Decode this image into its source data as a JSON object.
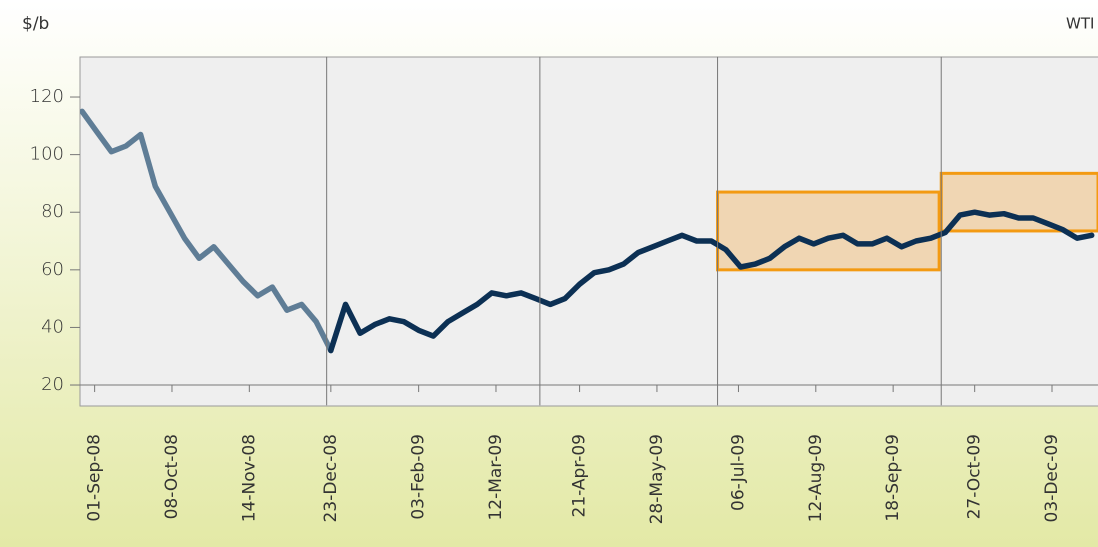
{
  "chart_data": {
    "type": "line",
    "y_unit": "$/b",
    "series_label": "WTI",
    "x": [
      "26-Aug-08",
      "02-Sep-08",
      "09-Sep-08",
      "16-Sep-08",
      "23-Sep-08",
      "30-Sep-08",
      "07-Oct-08",
      "14-Oct-08",
      "21-Oct-08",
      "28-Oct-08",
      "04-Nov-08",
      "11-Nov-08",
      "18-Nov-08",
      "25-Nov-08",
      "02-Dec-08",
      "09-Dec-08",
      "16-Dec-08",
      "23-Dec-08",
      "30-Dec-08",
      "06-Jan-09",
      "13-Jan-09",
      "20-Jan-09",
      "27-Jan-09",
      "03-Feb-09",
      "10-Feb-09",
      "17-Feb-09",
      "24-Feb-09",
      "03-Mar-09",
      "10-Mar-09",
      "17-Mar-09",
      "24-Mar-09",
      "31-Mar-09",
      "07-Apr-09",
      "14-Apr-09",
      "21-Apr-09",
      "28-Apr-09",
      "05-May-09",
      "12-May-09",
      "19-May-09",
      "26-May-09",
      "02-Jun-09",
      "09-Jun-09",
      "16-Jun-09",
      "23-Jun-09",
      "30-Jun-09",
      "07-Jul-09",
      "14-Jul-09",
      "21-Jul-09",
      "28-Jul-09",
      "04-Aug-09",
      "11-Aug-09",
      "18-Aug-09",
      "25-Aug-09",
      "01-Sep-09",
      "08-Sep-09",
      "15-Sep-09",
      "22-Sep-09",
      "29-Sep-09",
      "06-Oct-09",
      "13-Oct-09",
      "20-Oct-09",
      "27-Oct-09",
      "03-Nov-09",
      "10-Nov-09",
      "17-Nov-09",
      "24-Nov-09",
      "01-Dec-09",
      "08-Dec-09",
      "15-Dec-09",
      "22-Dec-09"
    ],
    "series": [
      {
        "color": "#5f7d96",
        "values": [
          115,
          108,
          101,
          103,
          107,
          89,
          80,
          71,
          64,
          68,
          62,
          56,
          51,
          54,
          46,
          48,
          42,
          32,
          null,
          null,
          null,
          null,
          null,
          null,
          null,
          null,
          null,
          null,
          null,
          null,
          null,
          null,
          null,
          null,
          null,
          null,
          null,
          null,
          null,
          null,
          null,
          null,
          null,
          null,
          null,
          null,
          null,
          null,
          null,
          null,
          null,
          null,
          null,
          null,
          null,
          null,
          null,
          null,
          null,
          null,
          null,
          null,
          null,
          null,
          null,
          null,
          null,
          null,
          null,
          null
        ]
      },
      {
        "color": "#0c3054",
        "values": [
          null,
          null,
          null,
          null,
          null,
          null,
          null,
          null,
          null,
          null,
          null,
          null,
          null,
          null,
          null,
          null,
          null,
          32,
          48,
          38,
          41,
          43,
          42,
          39,
          37,
          42,
          45,
          48,
          52,
          51,
          52,
          50,
          48,
          50,
          55,
          59,
          60,
          62,
          66,
          68,
          70,
          72,
          70,
          70,
          67,
          61,
          62,
          64,
          68,
          71,
          69,
          71,
          72,
          69,
          69,
          71,
          68,
          70,
          71,
          73,
          79,
          80,
          79,
          79.5,
          78,
          78,
          76,
          74,
          71,
          72
        ]
      }
    ],
    "xlim": [
      "25-Aug-08",
      "25-Dec-09"
    ],
    "xticks": [
      "01-Sep-08",
      "08-Oct-08",
      "14-Nov-08",
      "23-Dec-08",
      "03-Feb-09",
      "12-Mar-09",
      "21-Apr-09",
      "28-May-09",
      "06-Jul-09",
      "12-Aug-09",
      "18-Sep-09",
      "27-Oct-09",
      "03-Dec-09"
    ],
    "ylim": [
      13,
      134
    ],
    "yticks": [
      20,
      40,
      60,
      80,
      100,
      120
    ],
    "vlines": [
      "21-Dec-08",
      "02-Apr-09",
      "26-Jun-09",
      "11-Oct-09"
    ],
    "bands": [
      {
        "x": [
          "26-Jun-09",
          "10-Oct-09"
        ],
        "y": [
          60,
          87
        ]
      },
      {
        "x": [
          "11-Oct-09",
          "25-Dec-09"
        ],
        "y": [
          73.5,
          93.5
        ]
      }
    ]
  }
}
